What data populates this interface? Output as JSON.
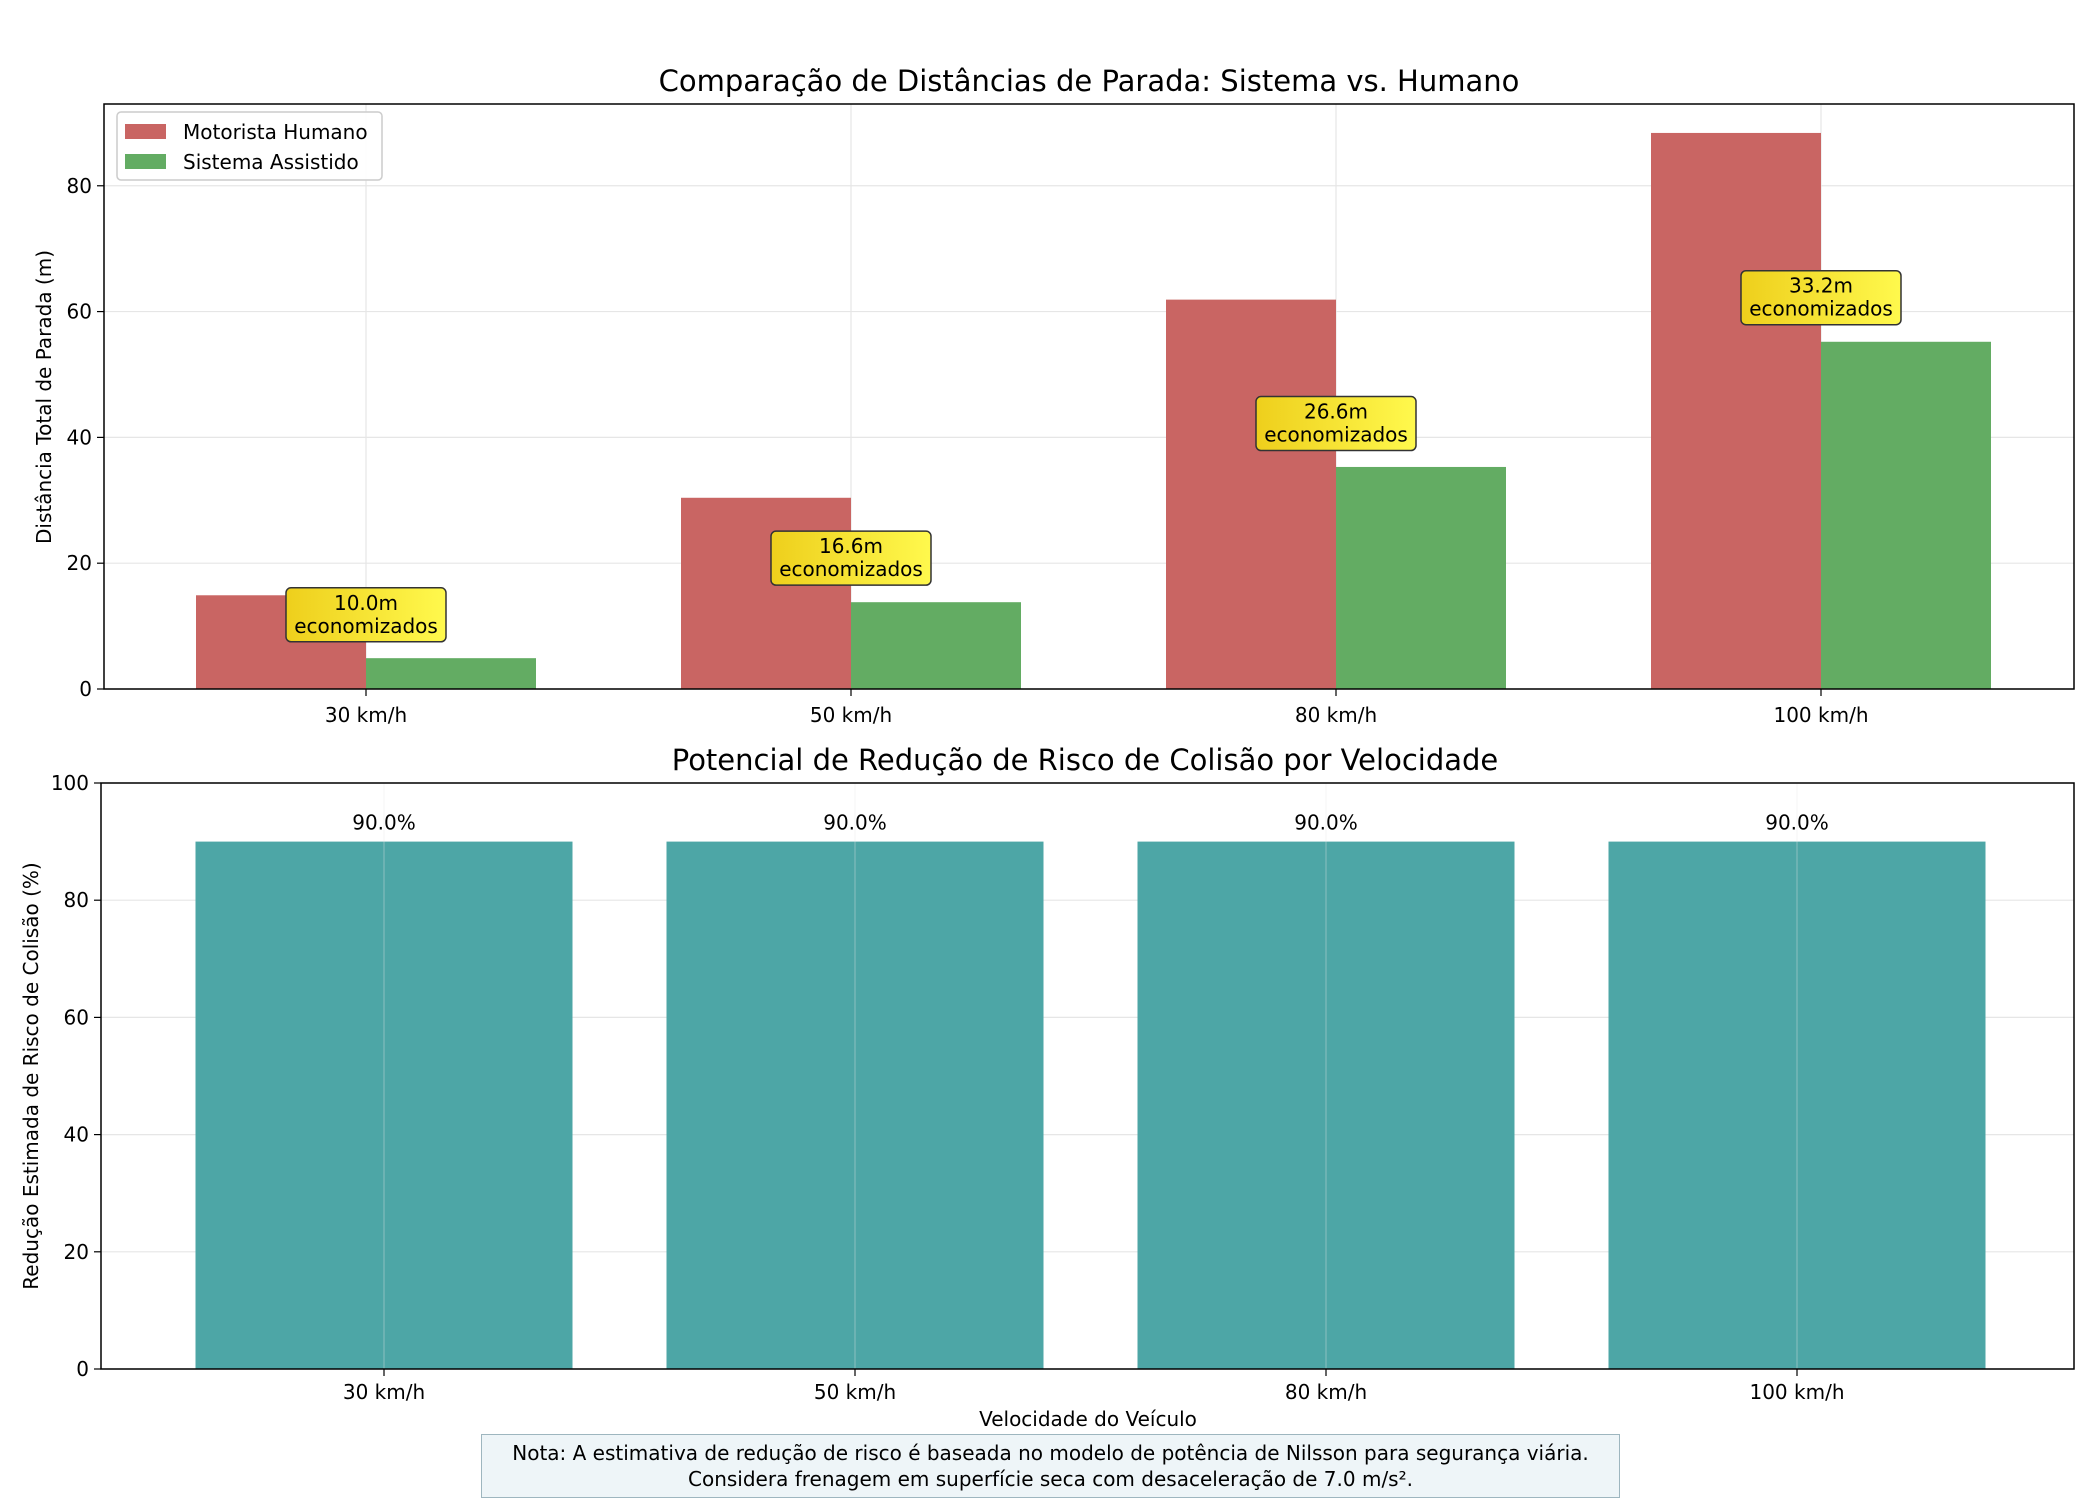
{
  "chart_data": [
    {
      "type": "bar",
      "title": "Comparação de Distâncias de Parada: Sistema vs. Humano",
      "xlabel": "",
      "ylabel": "Distância Total de Parada (m)",
      "categories": [
        "30 km/h",
        "50 km/h",
        "80 km/h",
        "100 km/h"
      ],
      "ylim": [
        0,
        93
      ],
      "yticks": [
        0,
        20,
        40,
        60,
        80
      ],
      "grid": true,
      "legend": "top-left",
      "series": [
        {
          "name": "Motorista Humano",
          "color": "#c96563",
          "values": [
            14.9,
            30.4,
            61.9,
            88.4
          ]
        },
        {
          "name": "Sistema Assistido",
          "color": "#63ac63",
          "values": [
            4.9,
            13.8,
            35.3,
            55.2
          ]
        }
      ],
      "annotations": [
        {
          "category": "30 km/h",
          "y": 11.8,
          "line1": "10.0m",
          "line2": "economizados"
        },
        {
          "category": "50 km/h",
          "y": 20.8,
          "line1": "16.6m",
          "line2": "economizados"
        },
        {
          "category": "80 km/h",
          "y": 42.2,
          "line1": "26.6m",
          "line2": "economizados"
        },
        {
          "category": "100 km/h",
          "y": 62.2,
          "line1": "33.2m",
          "line2": "economizados"
        }
      ],
      "annotation_colors": [
        "#eecf1c",
        "#fff94d"
      ]
    },
    {
      "type": "bar",
      "title": "Potencial de Redução de Risco de Colisão por Velocidade",
      "xlabel": "Velocidade do Veículo",
      "ylabel": "Redução Estimada de Risco de Colisão (%)",
      "categories": [
        "30 km/h",
        "50 km/h",
        "80 km/h",
        "100 km/h"
      ],
      "ylim": [
        0,
        100
      ],
      "yticks": [
        0,
        20,
        40,
        60,
        80,
        100
      ],
      "grid": true,
      "color": "#4da6a6",
      "values": [
        90.0,
        90.0,
        90.0,
        90.0
      ],
      "value_labels": [
        "90.0%",
        "90.0%",
        "90.0%",
        "90.0%"
      ]
    }
  ],
  "note": {
    "line1": "Nota: A estimativa de redução de risco é baseada no modelo de potência de Nilsson para segurança viária.",
    "line2": "Considera frenagem em superfície seca com desaceleração de 7.0 m/s²."
  }
}
